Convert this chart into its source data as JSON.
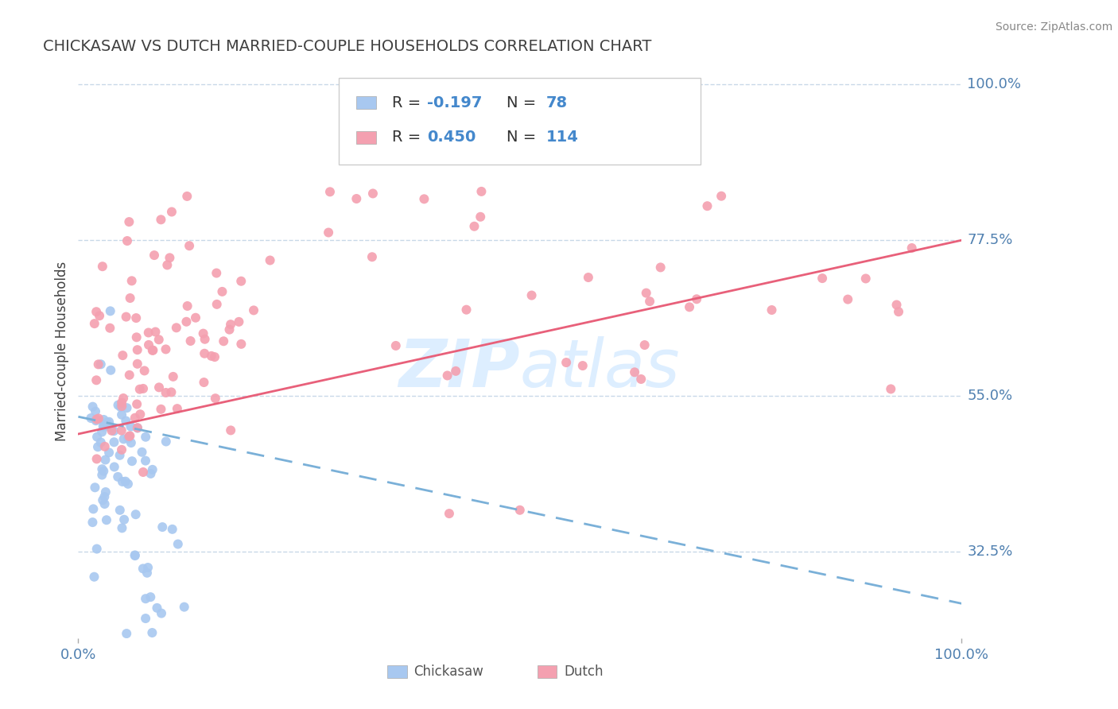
{
  "title": "CHICKASAW VS DUTCH MARRIED-COUPLE HOUSEHOLDS CORRELATION CHART",
  "source": "Source: ZipAtlas.com",
  "ylabel": "Married-couple Households",
  "xlim": [
    0.0,
    1.0
  ],
  "ylim": [
    0.2,
    1.03
  ],
  "ytick_vals": [
    0.325,
    0.55,
    0.775,
    1.0
  ],
  "ytick_labels": [
    "32.5%",
    "55.0%",
    "77.5%",
    "100.0%"
  ],
  "xtick_vals": [
    0.0,
    1.0
  ],
  "xtick_labels": [
    "0.0%",
    "100.0%"
  ],
  "chickasaw_R": -0.197,
  "chickasaw_N": 78,
  "dutch_R": 0.45,
  "dutch_N": 114,
  "chickasaw_color": "#a8c8f0",
  "dutch_color": "#f4a0b0",
  "chickasaw_line_color": "#7ab0d8",
  "dutch_line_color": "#e8607a",
  "grid_color": "#c8d8e8",
  "background_color": "#ffffff",
  "title_color": "#404040",
  "axis_color": "#5080b0",
  "watermark_color": "#ddeeff",
  "legend_color_chickasaw": "#a8c8f0",
  "legend_color_dutch": "#f4a0b0",
  "chick_line_y0": 0.52,
  "chick_line_y1": 0.25,
  "dutch_line_y0": 0.495,
  "dutch_line_y1": 0.775
}
